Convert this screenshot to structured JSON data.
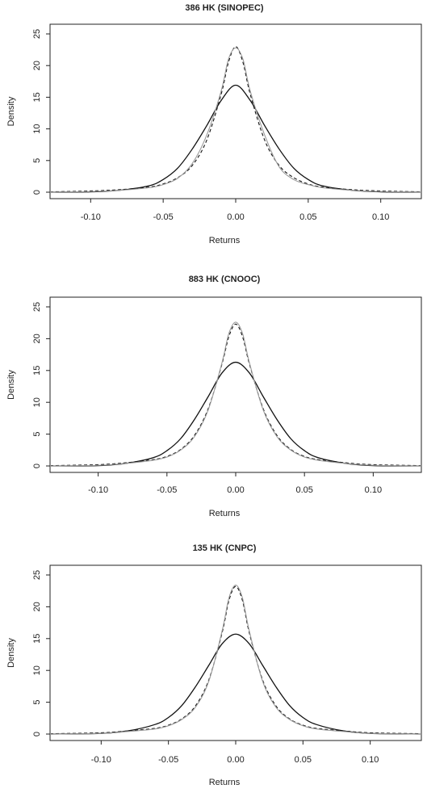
{
  "chart_data": [
    {
      "type": "line",
      "title": "386 HK (SINOPEC)",
      "xlabel": "Returns",
      "ylabel": "Density",
      "xlim": [
        -0.128,
        0.128
      ],
      "ylim": [
        0,
        25
      ],
      "x_ticks": [
        -0.1,
        -0.05,
        0.0,
        0.05,
        0.1
      ],
      "x_tick_labels": [
        "-0.10",
        "-0.05",
        "0.00",
        "0.05",
        "0.10"
      ],
      "y_ticks": [
        0,
        5,
        10,
        15,
        20,
        25
      ],
      "y_tick_labels": [
        "0",
        "5",
        "10",
        "15",
        "20",
        "25"
      ],
      "grid": false,
      "series": [
        {
          "style": "solid-black",
          "color": "#111111",
          "points": [
            [
              -0.128,
              0.0
            ],
            [
              -0.1,
              0.05
            ],
            [
              -0.08,
              0.3
            ],
            [
              -0.06,
              1.0
            ],
            [
              -0.05,
              2.0
            ],
            [
              -0.04,
              3.8
            ],
            [
              -0.03,
              6.8
            ],
            [
              -0.02,
              10.5
            ],
            [
              -0.01,
              14.5
            ],
            [
              0.0,
              16.9
            ],
            [
              0.01,
              14.5
            ],
            [
              0.02,
              10.5
            ],
            [
              0.03,
              6.8
            ],
            [
              0.04,
              3.8
            ],
            [
              0.05,
              2.0
            ],
            [
              0.06,
              1.0
            ],
            [
              0.08,
              0.3
            ],
            [
              0.1,
              0.05
            ],
            [
              0.128,
              0.0
            ]
          ]
        },
        {
          "style": "dashed-black",
          "color": "#111111",
          "points": [
            [
              -0.128,
              0.05
            ],
            [
              -0.1,
              0.2
            ],
            [
              -0.08,
              0.4
            ],
            [
              -0.06,
              0.8
            ],
            [
              -0.05,
              1.3
            ],
            [
              -0.04,
              2.3
            ],
            [
              -0.03,
              4.2
            ],
            [
              -0.02,
              8.2
            ],
            [
              -0.01,
              15.5
            ],
            [
              -0.005,
              20.5
            ],
            [
              0.0,
              23.0
            ],
            [
              0.005,
              20.5
            ],
            [
              0.01,
              15.5
            ],
            [
              0.02,
              8.2
            ],
            [
              0.03,
              4.2
            ],
            [
              0.04,
              2.3
            ],
            [
              0.05,
              1.3
            ],
            [
              0.06,
              0.8
            ],
            [
              0.08,
              0.4
            ],
            [
              0.1,
              0.2
            ],
            [
              0.128,
              0.05
            ]
          ]
        },
        {
          "style": "solid-gray",
          "color": "#9a9a9a",
          "points": [
            [
              -0.128,
              0.0
            ],
            [
              -0.1,
              0.1
            ],
            [
              -0.08,
              0.3
            ],
            [
              -0.06,
              0.7
            ],
            [
              -0.05,
              1.2
            ],
            [
              -0.04,
              2.2
            ],
            [
              -0.03,
              4.5
            ],
            [
              -0.02,
              9.0
            ],
            [
              -0.01,
              16.0
            ],
            [
              -0.005,
              21.0
            ],
            [
              0.0,
              22.8
            ],
            [
              0.005,
              21.0
            ],
            [
              0.01,
              16.0
            ],
            [
              0.02,
              9.0
            ],
            [
              0.03,
              4.0
            ],
            [
              0.04,
              2.0
            ],
            [
              0.05,
              1.2
            ],
            [
              0.06,
              0.7
            ],
            [
              0.08,
              0.3
            ],
            [
              0.1,
              0.1
            ],
            [
              0.128,
              0.0
            ]
          ]
        }
      ]
    },
    {
      "type": "line",
      "title": "883 HK (CNOOC)",
      "xlabel": "Returns",
      "ylabel": "Density",
      "xlim": [
        -0.135,
        0.135
      ],
      "ylim": [
        0,
        25
      ],
      "x_ticks": [
        -0.1,
        -0.05,
        0.0,
        0.05,
        0.1
      ],
      "x_tick_labels": [
        "-0.10",
        "-0.05",
        "0.00",
        "0.05",
        "0.10"
      ],
      "y_ticks": [
        0,
        5,
        10,
        15,
        20,
        25
      ],
      "y_tick_labels": [
        "0",
        "5",
        "10",
        "15",
        "20",
        "25"
      ],
      "grid": false,
      "series": [
        {
          "style": "solid-black",
          "color": "#111111",
          "points": [
            [
              -0.135,
              0.0
            ],
            [
              -0.1,
              0.05
            ],
            [
              -0.08,
              0.4
            ],
            [
              -0.06,
              1.3
            ],
            [
              -0.05,
              2.4
            ],
            [
              -0.04,
              4.3
            ],
            [
              -0.03,
              7.3
            ],
            [
              -0.02,
              10.9
            ],
            [
              -0.01,
              14.6
            ],
            [
              0.0,
              16.3
            ],
            [
              0.01,
              14.6
            ],
            [
              0.02,
              10.9
            ],
            [
              0.03,
              7.3
            ],
            [
              0.04,
              4.3
            ],
            [
              0.05,
              2.4
            ],
            [
              0.06,
              1.3
            ],
            [
              0.08,
              0.4
            ],
            [
              0.1,
              0.05
            ],
            [
              0.135,
              0.0
            ]
          ]
        },
        {
          "style": "dashed-black",
          "color": "#111111",
          "points": [
            [
              -0.135,
              0.05
            ],
            [
              -0.1,
              0.2
            ],
            [
              -0.08,
              0.5
            ],
            [
              -0.06,
              1.0
            ],
            [
              -0.05,
              1.5
            ],
            [
              -0.04,
              2.6
            ],
            [
              -0.03,
              4.8
            ],
            [
              -0.02,
              9.0
            ],
            [
              -0.01,
              16.0
            ],
            [
              -0.005,
              20.3
            ],
            [
              0.0,
              22.3
            ],
            [
              0.005,
              20.3
            ],
            [
              0.01,
              16.0
            ],
            [
              0.02,
              9.0
            ],
            [
              0.03,
              4.8
            ],
            [
              0.04,
              2.6
            ],
            [
              0.05,
              1.5
            ],
            [
              0.06,
              1.0
            ],
            [
              0.08,
              0.5
            ],
            [
              0.1,
              0.2
            ],
            [
              0.135,
              0.05
            ]
          ]
        },
        {
          "style": "solid-gray",
          "color": "#9a9a9a",
          "points": [
            [
              -0.135,
              0.0
            ],
            [
              -0.1,
              0.1
            ],
            [
              -0.08,
              0.4
            ],
            [
              -0.06,
              0.9
            ],
            [
              -0.05,
              1.4
            ],
            [
              -0.04,
              2.5
            ],
            [
              -0.03,
              4.6
            ],
            [
              -0.02,
              8.8
            ],
            [
              -0.01,
              16.2
            ],
            [
              -0.005,
              20.8
            ],
            [
              0.0,
              22.6
            ],
            [
              0.005,
              20.8
            ],
            [
              0.01,
              16.2
            ],
            [
              0.02,
              8.8
            ],
            [
              0.03,
              4.6
            ],
            [
              0.04,
              2.5
            ],
            [
              0.05,
              1.4
            ],
            [
              0.06,
              0.9
            ],
            [
              0.08,
              0.4
            ],
            [
              0.1,
              0.1
            ],
            [
              0.135,
              0.0
            ]
          ]
        }
      ]
    },
    {
      "type": "line",
      "title": "135 HK (CNPC)",
      "xlabel": "Returns",
      "ylabel": "Density",
      "xlim": [
        -0.138,
        0.138
      ],
      "ylim": [
        0,
        25
      ],
      "x_ticks": [
        -0.1,
        -0.05,
        0.0,
        0.05,
        0.1
      ],
      "x_tick_labels": [
        "-0.10",
        "-0.05",
        "0.00",
        "0.05",
        "0.10"
      ],
      "y_ticks": [
        0,
        5,
        10,
        15,
        20,
        25
      ],
      "y_tick_labels": [
        "0",
        "5",
        "10",
        "15",
        "20",
        "25"
      ],
      "grid": false,
      "series": [
        {
          "style": "solid-black",
          "color": "#111111",
          "points": [
            [
              -0.138,
              0.0
            ],
            [
              -0.1,
              0.1
            ],
            [
              -0.08,
              0.5
            ],
            [
              -0.06,
              1.5
            ],
            [
              -0.05,
              2.6
            ],
            [
              -0.04,
              4.5
            ],
            [
              -0.03,
              7.4
            ],
            [
              -0.02,
              10.8
            ],
            [
              -0.01,
              14.2
            ],
            [
              0.0,
              15.7
            ],
            [
              0.01,
              14.2
            ],
            [
              0.02,
              10.8
            ],
            [
              0.03,
              7.4
            ],
            [
              0.04,
              4.5
            ],
            [
              0.05,
              2.6
            ],
            [
              0.06,
              1.5
            ],
            [
              0.08,
              0.5
            ],
            [
              0.1,
              0.1
            ],
            [
              0.138,
              0.0
            ]
          ]
        },
        {
          "style": "dashed-black",
          "color": "#111111",
          "points": [
            [
              -0.138,
              0.05
            ],
            [
              -0.1,
              0.2
            ],
            [
              -0.08,
              0.5
            ],
            [
              -0.06,
              0.9
            ],
            [
              -0.05,
              1.4
            ],
            [
              -0.04,
              2.4
            ],
            [
              -0.03,
              4.4
            ],
            [
              -0.02,
              8.5
            ],
            [
              -0.01,
              16.0
            ],
            [
              -0.005,
              21.0
            ],
            [
              0.0,
              23.2
            ],
            [
              0.005,
              21.0
            ],
            [
              0.01,
              16.0
            ],
            [
              0.02,
              8.5
            ],
            [
              0.03,
              4.4
            ],
            [
              0.04,
              2.4
            ],
            [
              0.05,
              1.4
            ],
            [
              0.06,
              0.9
            ],
            [
              0.08,
              0.5
            ],
            [
              0.1,
              0.2
            ],
            [
              0.138,
              0.05
            ]
          ]
        },
        {
          "style": "solid-gray",
          "color": "#9a9a9a",
          "points": [
            [
              -0.138,
              0.0
            ],
            [
              -0.1,
              0.1
            ],
            [
              -0.08,
              0.4
            ],
            [
              -0.06,
              0.8
            ],
            [
              -0.05,
              1.3
            ],
            [
              -0.04,
              2.3
            ],
            [
              -0.03,
              4.2
            ],
            [
              -0.02,
              8.3
            ],
            [
              -0.01,
              16.3
            ],
            [
              -0.005,
              21.4
            ],
            [
              0.0,
              23.4
            ],
            [
              0.005,
              21.4
            ],
            [
              0.01,
              16.3
            ],
            [
              0.02,
              8.3
            ],
            [
              0.03,
              4.2
            ],
            [
              0.04,
              2.3
            ],
            [
              0.05,
              1.3
            ],
            [
              0.06,
              0.8
            ],
            [
              0.08,
              0.4
            ],
            [
              0.1,
              0.1
            ],
            [
              0.138,
              0.0
            ]
          ]
        }
      ]
    }
  ]
}
